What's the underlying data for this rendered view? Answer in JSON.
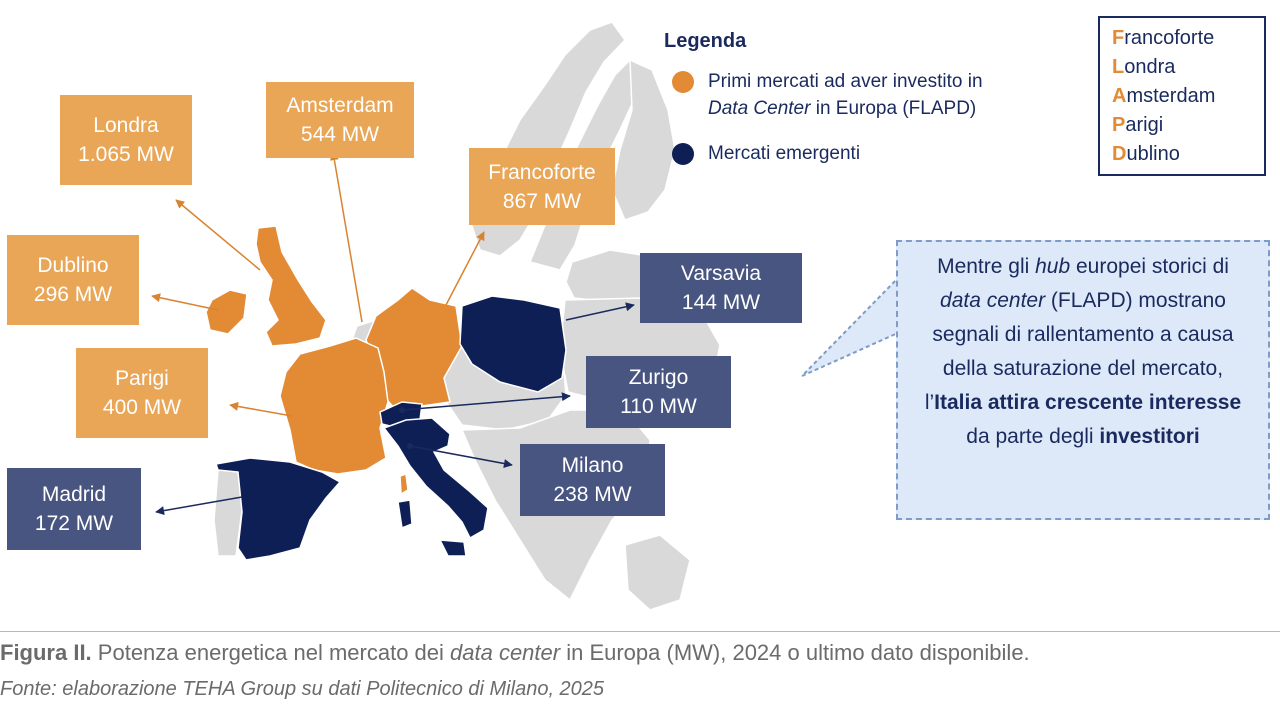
{
  "colors": {
    "flapd": "#e38a35",
    "emerging": "#0e1f56",
    "other_country": "#d9d9d9",
    "flapd_label_bg": "#e9a657",
    "emerging_label_bg": "#475580",
    "callout_bg": "#dde8f8"
  },
  "legend": {
    "title": "Legenda",
    "flapd_line1": "Primi mercati ad aver investito in",
    "flapd_italic": "Data Center",
    "flapd_line2_rest": " in Europa (FLAPD)",
    "emerging": "Mercati emergenti"
  },
  "acronym": [
    {
      "letter": "F",
      "rest": "rancoforte"
    },
    {
      "letter": "L",
      "rest": "ondra"
    },
    {
      "letter": "A",
      "rest": "msterdam"
    },
    {
      "letter": "P",
      "rest": "arigi"
    },
    {
      "letter": "D",
      "rest": "ublino"
    }
  ],
  "markets": {
    "londra": {
      "name": "Londra",
      "value": "1.065 MW",
      "group": "FLAPD"
    },
    "amsterdam": {
      "name": "Amsterdam",
      "value": "544 MW",
      "group": "FLAPD"
    },
    "francoforte": {
      "name": "Francoforte",
      "value": "867 MW",
      "group": "FLAPD"
    },
    "dublino": {
      "name": "Dublino",
      "value": "296 MW",
      "group": "FLAPD"
    },
    "parigi": {
      "name": "Parigi",
      "value": "400 MW",
      "group": "FLAPD"
    },
    "madrid": {
      "name": "Madrid",
      "value": "172 MW",
      "group": "emergenti"
    },
    "varsavia": {
      "name": "Varsavia",
      "value": "144 MW",
      "group": "emergenti"
    },
    "zurigo": {
      "name": "Zurigo",
      "value": "110 MW",
      "group": "emergenti"
    },
    "milano": {
      "name": "Milano",
      "value": "238 MW",
      "group": "emergenti"
    }
  },
  "callout": {
    "t1": "Mentre gli ",
    "t2": "hub",
    "t3": " europei storici di ",
    "t4": "data center",
    "t5": " (FLAPD) mostrano segnali di rallentamento a causa della saturazione del mercato, l’",
    "t6": "Italia attira crescente interesse",
    "t7": " da parte degli ",
    "t8": "investitori"
  },
  "caption": {
    "label": "Figura II.",
    "text_before": " Potenza energetica nel mercato dei ",
    "italic": "data center",
    "text_after": " in Europa (MW), 2024 o ultimo dato disponibile.",
    "source": "Fonte: elaborazione TEHA Group su dati Politecnico di Milano, 2025"
  }
}
